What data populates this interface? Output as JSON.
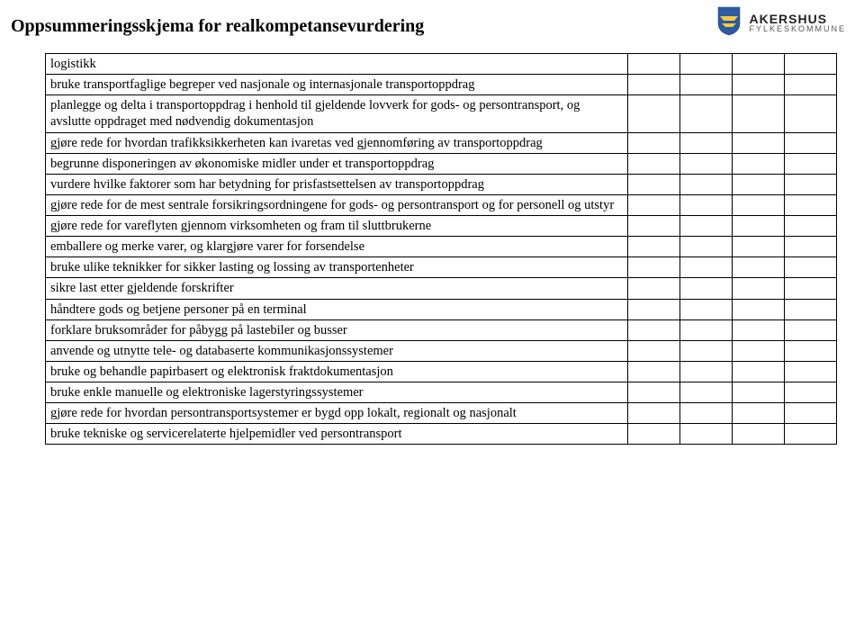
{
  "header": {
    "title": "Oppsummeringsskjema for realkompetansevurdering",
    "logo": {
      "shield_blue": "#2b5aa0",
      "shield_yellow": "#f5c944",
      "top": "AKERSHUS",
      "bottom": "FYLKESKOMMUNE"
    }
  },
  "rows": [
    "logistikk",
    "bruke transportfaglige begreper ved nasjonale og internasjonale transportoppdrag",
    "planlegge og delta i transportoppdrag i henhold til gjeldende lovverk for gods- og persontransport, og avslutte oppdraget med nødvendig dokumentasjon",
    "gjøre rede for hvordan trafikksikkerheten kan ivaretas ved gjennomføring av transportoppdrag",
    "begrunne disponeringen av økonomiske midler under et transportoppdrag",
    "vurdere hvilke faktorer som har betydning for prisfastsettelsen av transportoppdrag",
    "gjøre rede for de mest sentrale forsikringsordningene for gods- og persontransport og for personell og utstyr",
    "gjøre rede for vareflyten gjennom virksomheten og fram til sluttbrukerne",
    "emballere og merke varer, og klargjøre varer for forsendelse",
    "bruke ulike teknikker for sikker lasting og lossing av transportenheter",
    "sikre last etter gjeldende forskrifter",
    "håndtere gods og betjene personer på en terminal",
    "forklare bruksområder for påbygg på lastebiler og busser",
    "anvende og utnytte tele- og databaserte kommunikasjonssystemer",
    "bruke og behandle papirbasert og elektronisk fraktdokumentasjon",
    "bruke enkle manuelle og elektroniske lagerstyringssystemer",
    "gjøre rede for hvordan persontransportsystemer er bygd opp lokalt, regionalt og nasjonalt",
    "bruke tekniske og servicerelaterte hjelpemidler ved persontransport"
  ]
}
